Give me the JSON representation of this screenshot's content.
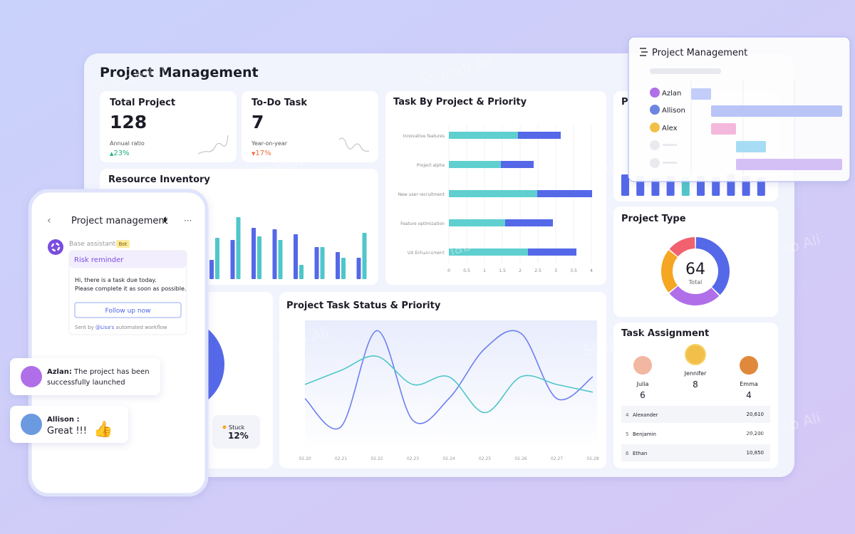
{
  "watermark": "Shahab Ali",
  "dashboard": {
    "title": "Project Management",
    "cards": [
      {
        "title": "Total Project",
        "value": 128,
        "note": "Annual ratio",
        "change": "23%"
      },
      {
        "title": "To-Do Task",
        "value": 7,
        "note": "Year-on-year",
        "change": "17%"
      }
    ],
    "status": {
      "label": "Stuck",
      "value": "12%"
    },
    "assignment": {
      "title": "Task Assignment",
      "people": [
        {
          "name": "Julia",
          "count": 6
        },
        {
          "name": "Jennifer",
          "count": 8
        },
        {
          "name": "Emma",
          "count": 4
        }
      ],
      "rows": [
        [
          "4",
          "Alexander",
          "20,610"
        ],
        [
          "5",
          "Benjamin",
          "20,200"
        ],
        [
          "6",
          "Ethan",
          "10,850"
        ]
      ]
    }
  },
  "chart_data": [
    {
      "type": "grouped_bar",
      "title": "Resource Inventory",
      "series": [
        {
          "color": "#5468e8",
          "values": [
            27,
            55,
            72,
            70,
            63,
            45,
            38,
            30
          ]
        },
        {
          "color": "#4fc6c9",
          "values": [
            58,
            87,
            60,
            55,
            20,
            45,
            30,
            65
          ]
        }
      ],
      "ylim": [
        0,
        100
      ]
    },
    {
      "type": "hbar_stacked",
      "title": "Task By Project & Priority",
      "categories": [
        "Innovative features",
        "Project alpha",
        "New user recruitment",
        "Feature optimization",
        "UX Enhancement"
      ],
      "series": [
        {
          "color": "#5fcfcf",
          "values": [
            1.94,
            1.46,
            2.48,
            1.58,
            2.22
          ]
        },
        {
          "color": "#5468e8",
          "values": [
            1.2,
            0.92,
            1.54,
            1.34,
            1.36
          ]
        }
      ],
      "xlim": [
        0,
        4
      ],
      "xticks": [
        0,
        0.5,
        1,
        1.5,
        2,
        2.5,
        3,
        3.5,
        4
      ]
    },
    {
      "type": "bar",
      "title": "P",
      "values": [
        30,
        28,
        25,
        28,
        26,
        28,
        26,
        30,
        28,
        26
      ],
      "colors": [
        "#5468e8",
        "#5468e8",
        "#5468e8",
        "#5468e8",
        "#4fc6c9",
        "#5468e8",
        "#5468e8",
        "#5468e8",
        "#5468e8",
        "#5468e8"
      ],
      "ylim": [
        0,
        40
      ]
    },
    {
      "type": "donut",
      "title": "Project Type",
      "center_value": 64,
      "center_label": "Total",
      "values": [
        24,
        17,
        14,
        9
      ],
      "colors": [
        "#5468e8",
        "#b06ee8",
        "#f5a623",
        "#f2616e"
      ]
    },
    {
      "type": "line",
      "title": "Project Task Status & Priority",
      "x": [
        "02.20",
        "02.21",
        "02.22",
        "02.23",
        "02.24",
        "02.25",
        "02.26",
        "02.27",
        "02.28"
      ],
      "series": [
        {
          "color": "#6c7ff0",
          "values": [
            39,
            17,
            92,
            22,
            39,
            78,
            90,
            39,
            56
          ]
        },
        {
          "color": "#4fc6c9",
          "values": [
            50,
            61,
            72,
            50,
            56,
            28,
            56,
            50,
            44
          ]
        }
      ],
      "ylim": [
        0,
        100
      ]
    }
  ],
  "gantt": {
    "title": "Project Management",
    "people": [
      "Azlan",
      "Allison",
      "Alex"
    ]
  },
  "phone": {
    "title": "Project management",
    "sender": "Base assistant",
    "badge": "Bot",
    "card_title": "Risk reminder",
    "message": [
      "Hi, there is a task due today.",
      "Please complete it as soon as possible."
    ],
    "button": "Follow up now",
    "footer_prefix": "Sent by ",
    "footer_mention": "@Lisa's",
    "footer_suffix": " automated workflow"
  },
  "chats": [
    {
      "name": "Azlan:",
      "text": [
        " The project has been",
        "successfully launched"
      ]
    },
    {
      "name": "Allison :",
      "text": [
        "Great !!!"
      ]
    }
  ]
}
